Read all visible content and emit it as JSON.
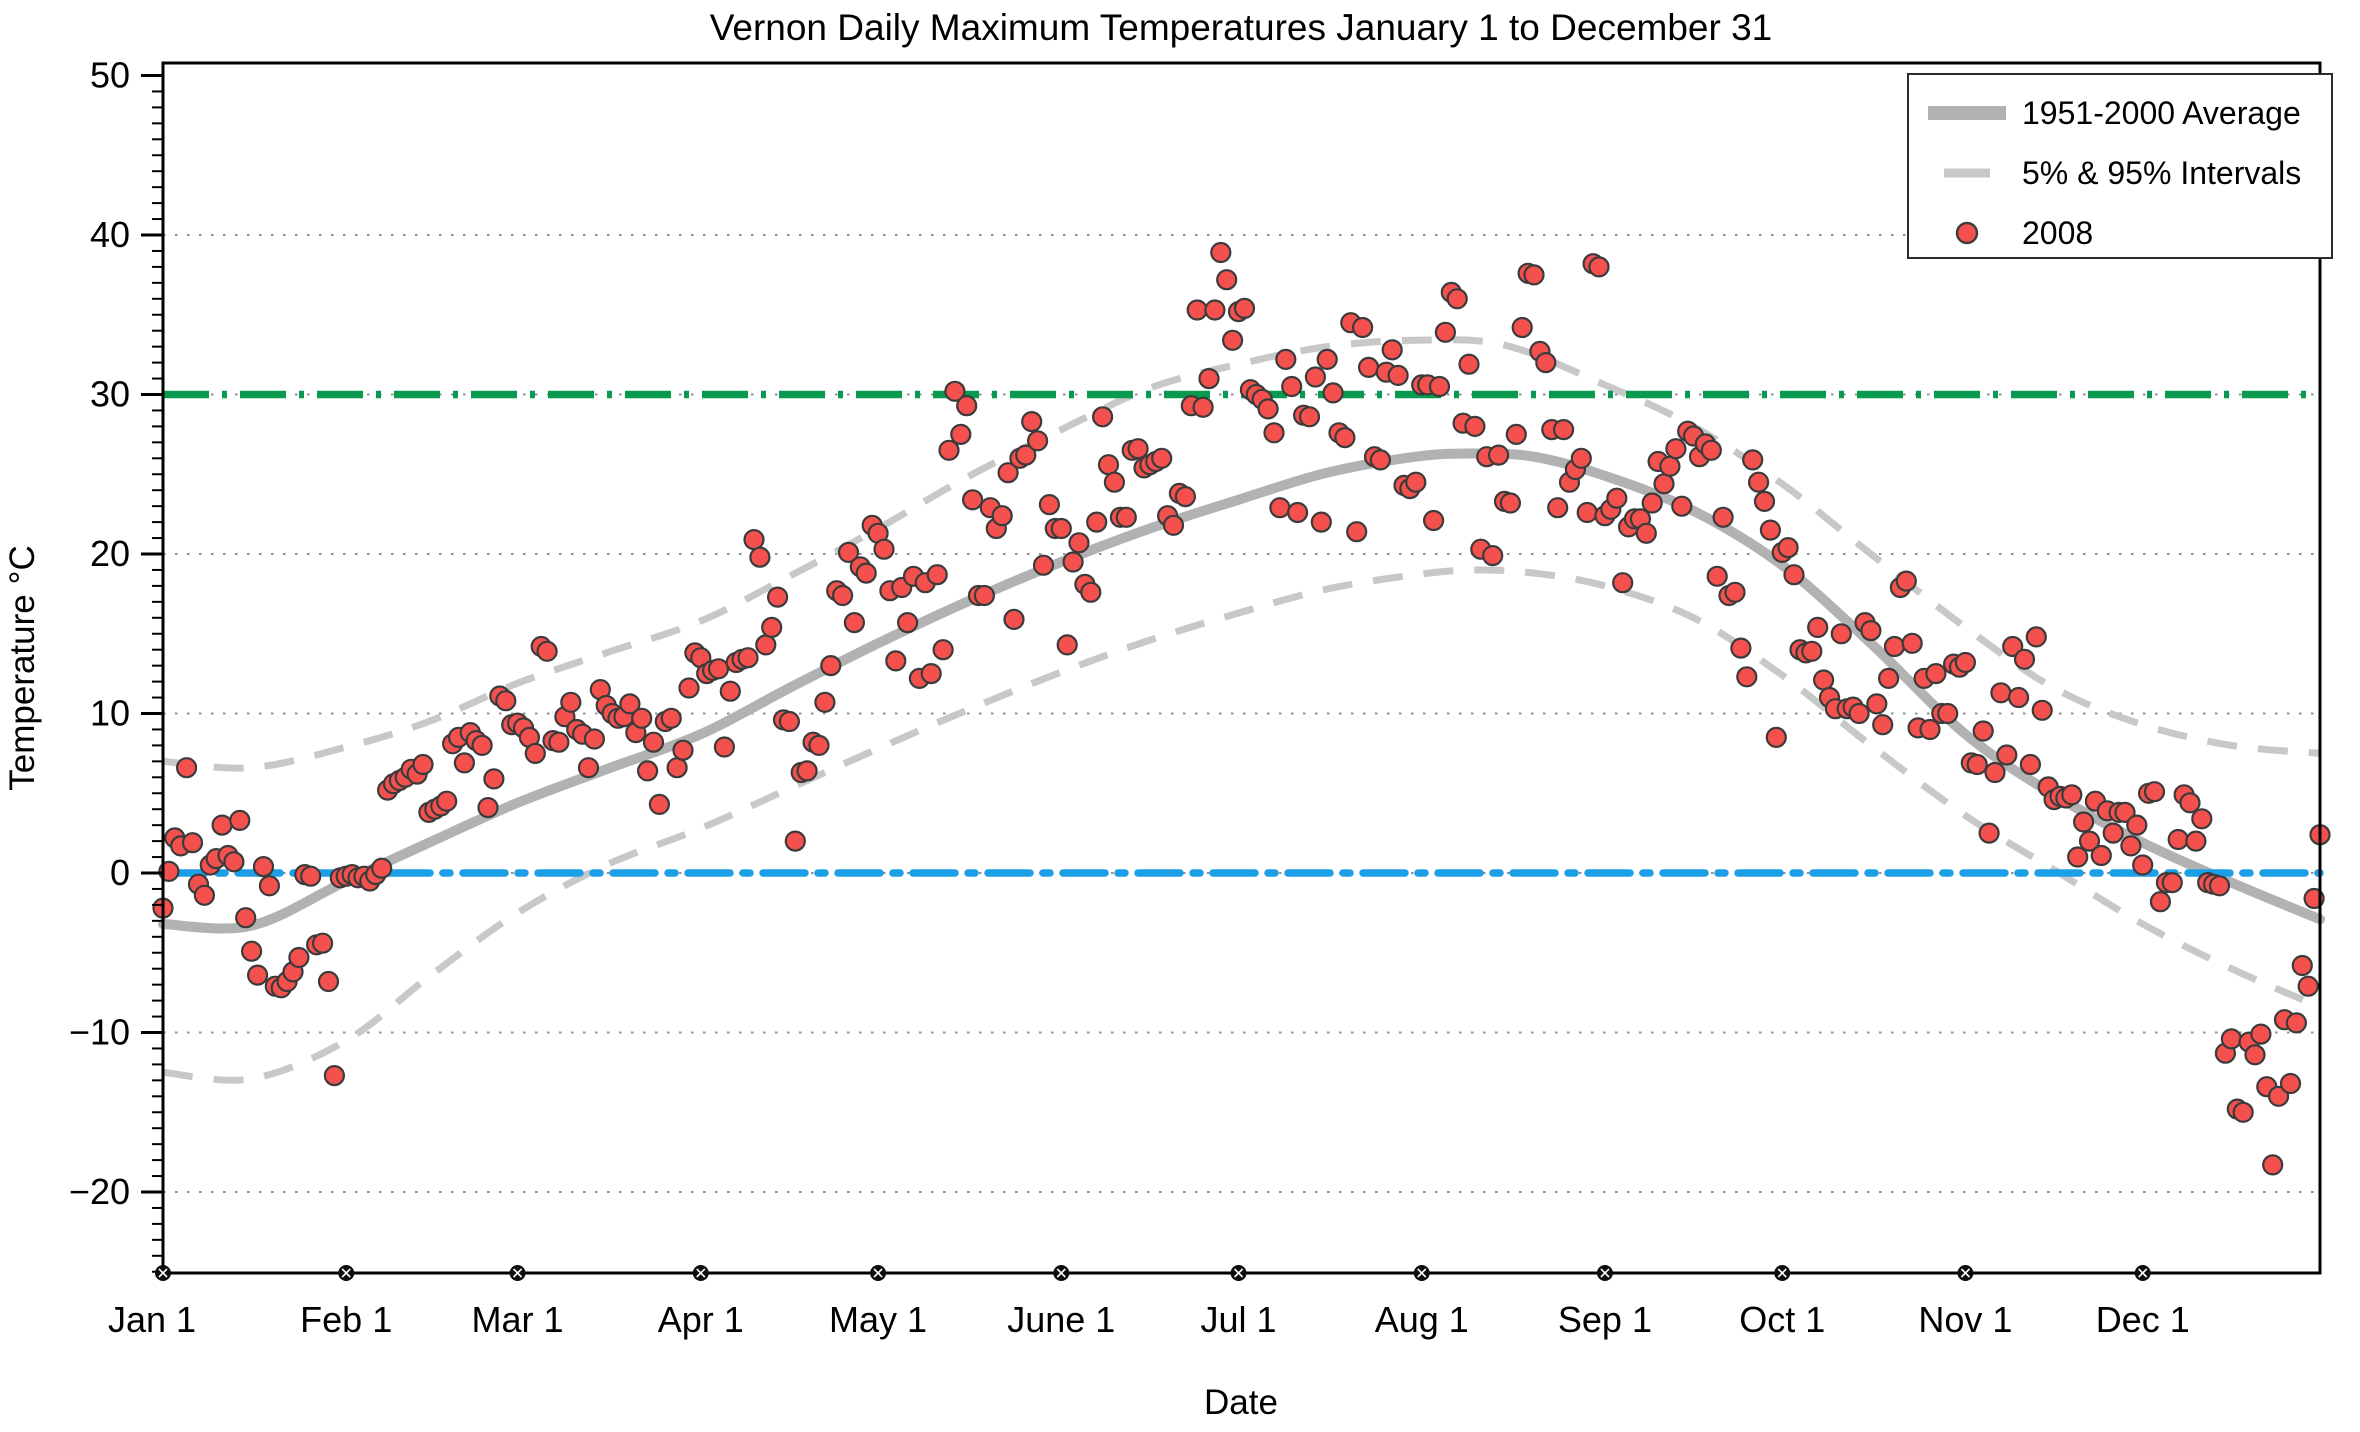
{
  "chart_data": {
    "type": "scatter",
    "title": "Vernon Daily Maximum Temperatures January 1 to December 31",
    "xlabel": "Date",
    "ylabel": "Temperature °C",
    "ylim": [
      -25,
      50.8
    ],
    "y_ticks": [
      50,
      40,
      30,
      20,
      10,
      0,
      -10,
      -20
    ],
    "y_minor_tick_step": 1,
    "grid": "horizontal dotted lines at every labeled tick",
    "legend_position": "upper right",
    "x_tick_labels": [
      "Jan 1",
      "Feb 1",
      "Mar 1",
      "Apr 1",
      "May 1",
      "June 1",
      "Jul 1",
      "Aug 1",
      "Sep 1",
      "Oct 1",
      "Nov 1",
      "Dec 1"
    ],
    "month_start_days": [
      0,
      31,
      60,
      91,
      121,
      152,
      182,
      213,
      244,
      274,
      305,
      335
    ],
    "reference_lines": [
      {
        "name": "30C-threshold",
        "value": 30,
        "style": "dashed",
        "color": "#089a4e"
      },
      {
        "name": "freezing-0C",
        "value": 0,
        "style": "dash-dot",
        "color": "#1d9fe8"
      }
    ],
    "legend": [
      {
        "label": "1951-2000 Average",
        "swatch": "thick-gray-line"
      },
      {
        "label": "5% & 95% Intervals",
        "swatch": "gray-dash"
      },
      {
        "label": "2008",
        "swatch": "red-dot"
      }
    ],
    "series": [
      {
        "name": "1951-2000 Average",
        "type": "smooth-line",
        "anchors_day_degC": [
          [
            0,
            -3.2
          ],
          [
            15,
            -3.3
          ],
          [
            31,
            -0.5
          ],
          [
            45,
            1.9
          ],
          [
            60,
            4.4
          ],
          [
            75,
            6.5
          ],
          [
            91,
            8.7
          ],
          [
            106,
            11.6
          ],
          [
            121,
            14.4
          ],
          [
            136,
            17.0
          ],
          [
            152,
            19.5
          ],
          [
            167,
            21.6
          ],
          [
            182,
            23.4
          ],
          [
            197,
            25.1
          ],
          [
            212,
            26.1
          ],
          [
            222,
            26.3
          ],
          [
            232,
            26.1
          ],
          [
            244,
            24.9
          ],
          [
            259,
            22.7
          ],
          [
            274,
            19.3
          ],
          [
            289,
            14.4
          ],
          [
            305,
            8.7
          ],
          [
            320,
            4.9
          ],
          [
            335,
            1.9
          ],
          [
            350,
            -0.6
          ],
          [
            365,
            -2.9
          ]
        ]
      },
      {
        "name": "95% Interval",
        "type": "smooth-dashed-line",
        "anchors_day_degC": [
          [
            0,
            7.0
          ],
          [
            15,
            6.6
          ],
          [
            31,
            7.9
          ],
          [
            45,
            9.5
          ],
          [
            60,
            11.9
          ],
          [
            75,
            13.8
          ],
          [
            91,
            15.8
          ],
          [
            106,
            18.6
          ],
          [
            121,
            21.6
          ],
          [
            136,
            24.8
          ],
          [
            152,
            27.8
          ],
          [
            167,
            30.4
          ],
          [
            182,
            31.9
          ],
          [
            197,
            33.0
          ],
          [
            212,
            33.4
          ],
          [
            227,
            33.1
          ],
          [
            244,
            30.6
          ],
          [
            259,
            28.0
          ],
          [
            274,
            24.4
          ],
          [
            289,
            20.0
          ],
          [
            305,
            15.4
          ],
          [
            320,
            11.6
          ],
          [
            335,
            9.3
          ],
          [
            350,
            8.0
          ],
          [
            365,
            7.5
          ]
        ]
      },
      {
        "name": "5% Interval",
        "type": "smooth-dashed-line",
        "anchors_day_degC": [
          [
            0,
            -12.5
          ],
          [
            15,
            -12.9
          ],
          [
            31,
            -10.5
          ],
          [
            45,
            -6.5
          ],
          [
            60,
            -2.5
          ],
          [
            75,
            0.5
          ],
          [
            91,
            2.8
          ],
          [
            106,
            5.3
          ],
          [
            121,
            7.8
          ],
          [
            136,
            10.2
          ],
          [
            152,
            12.6
          ],
          [
            167,
            14.6
          ],
          [
            182,
            16.3
          ],
          [
            197,
            17.8
          ],
          [
            212,
            18.7
          ],
          [
            222,
            19.0
          ],
          [
            232,
            18.8
          ],
          [
            244,
            18.0
          ],
          [
            259,
            16.0
          ],
          [
            274,
            12.4
          ],
          [
            289,
            8.0
          ],
          [
            305,
            3.6
          ],
          [
            320,
            0.2
          ],
          [
            335,
            -3.2
          ],
          [
            350,
            -6.0
          ],
          [
            365,
            -8.4
          ]
        ]
      },
      {
        "name": "2008",
        "type": "scatter-daily",
        "values_by_month_degC": {
          "Jan": [
            -2.2,
            0.1,
            2.2,
            1.7,
            6.6,
            1.9,
            -0.7,
            -1.4,
            0.5,
            0.9,
            3.0,
            1.1,
            0.7,
            3.3,
            -2.8,
            -4.9,
            -6.4,
            0.4,
            -0.8,
            -7.1,
            -7.2,
            -6.8,
            -6.2,
            -5.3,
            -0.1,
            -0.2,
            -4.5,
            -4.4,
            -6.8,
            -12.7,
            -0.3
          ],
          "Feb": [
            -0.2,
            -0.1,
            -0.3,
            -0.2,
            -0.5,
            -0.1,
            0.3,
            5.2,
            5.6,
            5.8,
            6.0,
            6.5,
            6.2,
            6.8,
            3.8,
            4.0,
            4.2,
            4.5,
            8.1,
            8.5,
            6.9,
            8.8,
            8.3,
            8.0,
            4.1,
            5.9,
            11.1,
            10.8,
            9.3
          ],
          "Mar": [
            9.4,
            9.1,
            8.5,
            7.5,
            14.2,
            13.9,
            8.3,
            8.2,
            9.8,
            10.7,
            9.0,
            8.7,
            6.6,
            8.4,
            11.5,
            10.5,
            10.0,
            9.7,
            9.8,
            10.6,
            8.8,
            9.7,
            6.4,
            8.2,
            4.3,
            9.5,
            9.7,
            6.6,
            7.7,
            11.6,
            13.8
          ],
          "Apr": [
            13.5,
            12.5,
            12.7,
            12.8,
            7.9,
            11.4,
            13.2,
            13.4,
            13.5,
            20.9,
            19.8,
            14.3,
            15.4,
            17.3,
            9.6,
            9.5,
            2.0,
            6.3,
            6.4,
            8.2,
            8.0,
            10.7,
            13.0,
            17.7,
            17.4,
            20.1,
            15.7,
            19.2,
            18.8,
            21.8
          ],
          "May": [
            21.3,
            20.3,
            17.7,
            13.3,
            17.9,
            15.7,
            18.6,
            12.2,
            18.2,
            12.5,
            18.7,
            14.0,
            26.5,
            30.2,
            27.5,
            29.3,
            23.4,
            17.4,
            17.4,
            22.9,
            21.6,
            22.4,
            25.1,
            15.9,
            26.0,
            26.2,
            28.3,
            27.1,
            19.3,
            23.1,
            21.6
          ],
          "Jun": [
            21.6,
            14.3,
            19.5,
            20.7,
            18.1,
            17.6,
            22.0,
            28.6,
            25.6,
            24.5,
            22.3,
            22.3,
            26.5,
            26.6,
            25.4,
            25.6,
            25.8,
            26.0,
            22.4,
            21.8,
            23.8,
            23.6,
            29.3,
            35.3,
            29.2,
            31.0,
            35.3,
            38.9,
            37.2,
            33.4
          ],
          "Jul": [
            35.2,
            35.4,
            30.3,
            30.0,
            29.7,
            29.1,
            27.6,
            22.9,
            32.2,
            30.5,
            22.6,
            28.7,
            28.6,
            31.1,
            22.0,
            32.2,
            30.1,
            27.6,
            27.3,
            34.5,
            21.4,
            34.2,
            31.7,
            26.1,
            25.9,
            31.4,
            32.8,
            31.2,
            24.3,
            24.1,
            24.5
          ],
          "Aug": [
            30.6,
            30.6,
            22.1,
            30.5,
            33.9,
            36.4,
            36.0,
            28.2,
            31.9,
            28.0,
            20.3,
            26.1,
            19.9,
            26.2,
            23.3,
            23.2,
            27.5,
            34.2,
            37.6,
            37.5,
            32.7,
            32.0,
            27.8,
            22.9,
            27.8,
            24.5,
            25.3,
            26.0,
            22.6,
            38.2,
            38.0
          ],
          "Sep": [
            22.4,
            22.8,
            23.5,
            18.2,
            21.7,
            22.2,
            22.2,
            21.3,
            23.2,
            25.8,
            24.4,
            25.5,
            26.6,
            23.0,
            27.7,
            27.4,
            26.1,
            26.9,
            26.5,
            18.6,
            22.3,
            17.4,
            17.6,
            14.1,
            12.3,
            25.9,
            24.5,
            23.3,
            21.5,
            8.5
          ],
          "Oct": [
            20.1,
            20.4,
            18.7,
            14.0,
            13.8,
            13.9,
            15.4,
            12.1,
            11.0,
            10.3,
            15.0,
            10.3,
            10.4,
            10.0,
            15.7,
            15.2,
            10.6,
            9.3,
            12.2,
            14.2,
            17.9,
            18.3,
            14.4,
            9.1,
            12.2,
            9.0,
            12.5,
            10.0,
            10.0,
            13.1,
            12.9
          ],
          "Nov": [
            13.2,
            6.9,
            6.8,
            8.9,
            2.5,
            6.3,
            11.3,
            7.4,
            14.2,
            11.0,
            13.4,
            6.8,
            14.8,
            10.2,
            5.4,
            4.6,
            4.8,
            4.7,
            4.9,
            1.0,
            3.2,
            2.0,
            4.5,
            1.1,
            3.9,
            2.5,
            3.8,
            3.8,
            1.7,
            3.0
          ],
          "Dec": [
            0.5,
            5.0,
            5.1,
            -1.8,
            -0.6,
            -0.6,
            2.1,
            4.9,
            4.4,
            2.0,
            3.4,
            -0.6,
            -0.7,
            -0.8,
            -11.3,
            -10.4,
            -14.8,
            -15.0,
            -10.6,
            -11.4,
            -10.1,
            -13.4,
            -18.3,
            -14.0,
            -9.2,
            -13.2,
            -9.4,
            -5.8,
            -7.1,
            -1.6,
            2.4
          ]
        }
      }
    ]
  },
  "colors": {
    "scatter_fill": "#f4514e",
    "scatter_stroke": "#3b3b3b",
    "average_line": "#b2b2b2",
    "interval_line": "#c8c8c8",
    "green_line": "#089a4e",
    "blue_line": "#1d9fe8",
    "gridline": "#909090",
    "axis": "#000000",
    "background": "#ffffff"
  }
}
